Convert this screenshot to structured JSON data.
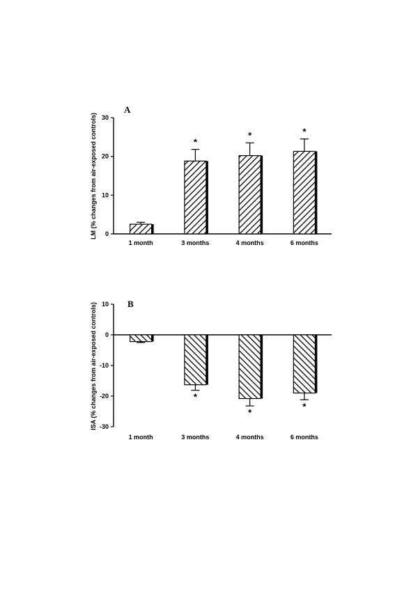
{
  "chart_data": [
    {
      "type": "bar",
      "panel_label": "A",
      "categories": [
        "1 month",
        "3 months",
        "4 months",
        "6 months"
      ],
      "values": [
        2.5,
        18.8,
        20.2,
        21.3
      ],
      "errors": [
        0.5,
        3.0,
        3.3,
        3.2
      ],
      "significance": [
        "",
        "*",
        "*",
        "*"
      ],
      "ylabel": "LM (% changes from air-exposed controls)",
      "xlabel": "",
      "ylim": [
        0,
        30
      ],
      "yticks": [
        "0",
        "10",
        "20",
        "30"
      ],
      "bar_fill": "diagonal-hatch",
      "colors": {
        "bar_stroke": "#000000",
        "hatch": "#000000",
        "background": "#ffffff"
      }
    },
    {
      "type": "bar",
      "panel_label": "B",
      "categories": [
        "1 month",
        "3 months",
        "4 months",
        "6 months"
      ],
      "values": [
        -2.2,
        -16.3,
        -20.8,
        -19.0
      ],
      "errors": [
        0.3,
        1.8,
        2.4,
        2.2
      ],
      "significance": [
        "",
        "*",
        "*",
        "*"
      ],
      "ylabel": "ISA (% changes from air-exposed controls)",
      "xlabel": "",
      "ylim": [
        -30,
        10
      ],
      "yticks": [
        "10",
        "0",
        "-10",
        "-20",
        "-30"
      ],
      "bar_fill": "diagonal-hatch",
      "colors": {
        "bar_stroke": "#000000",
        "hatch": "#000000",
        "background": "#ffffff"
      }
    }
  ]
}
